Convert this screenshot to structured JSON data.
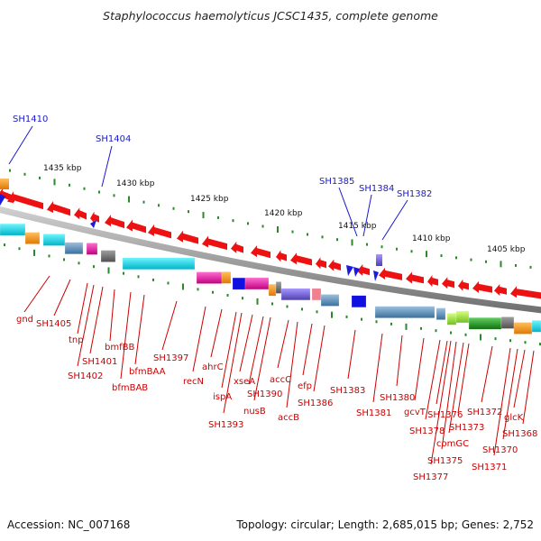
{
  "title": "Staphylococcus haemolyticus JCSC1435, complete genome",
  "accession": "Accession: NC_007168",
  "topology": "Topology: circular; Length: 2,685,015 bp; Genes: 2,752",
  "kbp_ticks": [
    "1435 kbp",
    "1430 kbp",
    "1425 kbp",
    "1420 kbp",
    "1415 kbp",
    "1410 kbp",
    "1405 kbp"
  ],
  "blue_labels": [
    "SH1410",
    "SH1404",
    "SH1385",
    "SH1384",
    "SH1382"
  ],
  "red_labels": [
    "gnd",
    "SH1405",
    "tnp",
    "SH1401",
    "SH1402",
    "bmfBB",
    "bfmBAA",
    "bfmBAB",
    "SH1397",
    "recN",
    "ahrC",
    "ispA",
    "SH1393",
    "xseA",
    "SH1390",
    "nusB",
    "accC",
    "efp",
    "accB",
    "SH1386",
    "SH1383",
    "SH1381",
    "SH1380",
    "gcvT",
    "SH1378",
    "SH1376",
    "SH1375",
    "SH1377",
    "comGC",
    "SH1373",
    "SH1372",
    "SH1371",
    "SH1370",
    "glcK",
    "SH1368"
  ],
  "colors": {
    "gene_arrow": "#ee1111",
    "callout_red": "#cc0000",
    "callout_blue": "#1a1ad0",
    "tick_green": "#2a8a2a",
    "backbone": "#8c8c8c"
  }
}
